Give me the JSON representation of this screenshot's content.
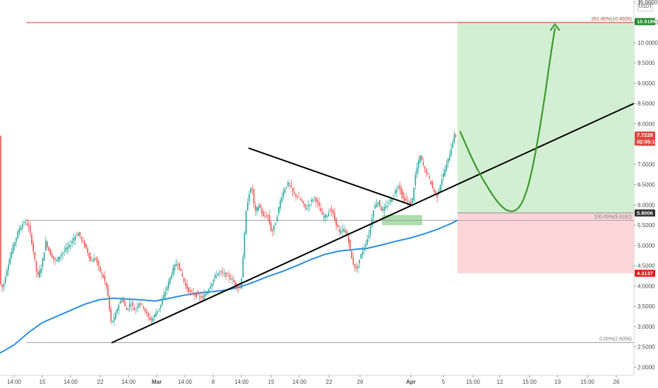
{
  "currency_badge": "USDT",
  "colors": {
    "up": "#26a69a",
    "down": "#ef5350",
    "ma": "#2a8fe0",
    "trend": "#000000",
    "fib_top": "#e53935",
    "fib_mid": "#9e9e9e",
    "target_zone": "#d3efd3",
    "stop_zone": "#fdd5d8",
    "path": "#3a9a2a",
    "demand_box": "#9ed79e"
  },
  "chart_data": {
    "type": "candlestick",
    "y_range": [
      1.8,
      11.05
    ],
    "price_ticks": [
      {
        "label": "11.0000",
        "value": 11.0
      },
      {
        "label": "10.5000",
        "value": 10.5
      },
      {
        "label": "10.0000",
        "value": 10.0
      },
      {
        "label": "9.5000",
        "value": 9.5
      },
      {
        "label": "9.0000",
        "value": 9.0
      },
      {
        "label": "8.5000",
        "value": 8.5
      },
      {
        "label": "8.0000",
        "value": 8.0
      },
      {
        "label": "7.5000",
        "value": 7.5
      },
      {
        "label": "7.0000",
        "value": 7.0
      },
      {
        "label": "6.5000",
        "value": 6.5
      },
      {
        "label": "6.0000",
        "value": 6.0
      },
      {
        "label": "5.5000",
        "value": 5.5
      },
      {
        "label": "5.0000",
        "value": 5.0
      },
      {
        "label": "4.5000",
        "value": 4.5
      },
      {
        "label": "4.0000",
        "value": 4.0
      },
      {
        "label": "3.5000",
        "value": 3.5
      },
      {
        "label": "3.0000",
        "value": 3.0
      },
      {
        "label": "2.5000",
        "value": 2.5
      },
      {
        "label": "2.0000",
        "value": 2.0
      }
    ],
    "time_ticks": [
      {
        "label": "14:00",
        "t": 20
      },
      {
        "label": "15",
        "t": 60
      },
      {
        "label": "14:00",
        "t": 100
      },
      {
        "label": "22",
        "t": 142
      },
      {
        "label": "14:00",
        "t": 182
      },
      {
        "label": "Mar",
        "t": 222,
        "bold": true
      },
      {
        "label": "14:00",
        "t": 262
      },
      {
        "label": "8",
        "t": 302
      },
      {
        "label": "14:00",
        "t": 342
      },
      {
        "label": "15",
        "t": 384
      },
      {
        "label": "14:00",
        "t": 424
      },
      {
        "label": "22",
        "t": 466
      },
      {
        "label": "26",
        "t": 510
      },
      {
        "label": "Apr",
        "t": 582,
        "bold": true
      },
      {
        "label": "5",
        "t": 628
      },
      {
        "label": "15:00",
        "t": 670
      },
      {
        "label": "12",
        "t": 708
      },
      {
        "label": "15:00",
        "t": 750
      },
      {
        "label": "19",
        "t": 790
      },
      {
        "label": "15:00",
        "t": 832
      },
      {
        "label": "26",
        "t": 873
      }
    ],
    "price_tags": [
      {
        "label": "10.5186",
        "value": 10.5186,
        "color": "#1e8a2a"
      },
      {
        "label": "7.7228",
        "value": 7.7228,
        "color": "#e0473e",
        "sub": "02:05:17"
      },
      {
        "label": "5.8006",
        "value": 5.8006,
        "color": "#303030"
      },
      {
        "label": "4.3137",
        "value": 4.3137,
        "color": "#e21b1b"
      }
    ],
    "fib_levels": [
      {
        "label": "261.80%(10.4926)",
        "value": 10.4926,
        "t_start": 37,
        "t_end": 898,
        "style": "red"
      },
      {
        "label": "100.00%(5.6182)",
        "value": 5.6182,
        "t_start": 37,
        "t_end": 898,
        "style": "mid"
      },
      {
        "label": "0.00%(2.6056)",
        "value": 2.6056,
        "t_start": 37,
        "t_end": 898,
        "style": "mid"
      }
    ],
    "position": {
      "t_start": 648,
      "t_end": 898,
      "entry": 5.8006,
      "target": 10.5186,
      "stop": 4.3137
    },
    "demand_zone": {
      "t_start": 541,
      "t_end": 598,
      "low": 5.5,
      "high": 5.75
    },
    "trendlines": [
      {
        "from": [
          158,
          2.6
        ],
        "to": [
          898,
          8.5
        ]
      },
      {
        "from": [
          352,
          7.4
        ],
        "to": [
          582,
          6.0
        ]
      }
    ],
    "projected_path": [
      [
        652,
        7.8
      ],
      [
        672,
        7.0
      ],
      [
        690,
        6.45
      ],
      [
        705,
        6.05
      ],
      [
        720,
        5.82
      ],
      [
        735,
        5.88
      ],
      [
        748,
        6.4
      ],
      [
        760,
        7.4
      ],
      [
        772,
        8.7
      ],
      [
        780,
        9.7
      ],
      [
        786,
        10.35
      ]
    ],
    "arrow_tip": [
      786,
      10.45
    ],
    "moving_average": [
      [
        0,
        2.35
      ],
      [
        20,
        2.55
      ],
      [
        40,
        2.85
      ],
      [
        60,
        3.1
      ],
      [
        80,
        3.25
      ],
      [
        100,
        3.4
      ],
      [
        120,
        3.55
      ],
      [
        140,
        3.66
      ],
      [
        160,
        3.7
      ],
      [
        180,
        3.68
      ],
      [
        200,
        3.66
      ],
      [
        220,
        3.63
      ],
      [
        240,
        3.7
      ],
      [
        260,
        3.77
      ],
      [
        280,
        3.83
      ],
      [
        300,
        3.86
      ],
      [
        320,
        3.9
      ],
      [
        340,
        3.98
      ],
      [
        360,
        4.1
      ],
      [
        380,
        4.24
      ],
      [
        400,
        4.36
      ],
      [
        420,
        4.5
      ],
      [
        440,
        4.65
      ],
      [
        460,
        4.78
      ],
      [
        480,
        4.86
      ],
      [
        500,
        4.9
      ],
      [
        520,
        4.93
      ],
      [
        540,
        5.01
      ],
      [
        560,
        5.1
      ],
      [
        580,
        5.18
      ],
      [
        600,
        5.28
      ],
      [
        620,
        5.4
      ],
      [
        640,
        5.55
      ],
      [
        648,
        5.62
      ]
    ],
    "price_path": [
      [
        0,
        4.1
      ],
      [
        5,
        3.95
      ],
      [
        12,
        4.5
      ],
      [
        20,
        5.0
      ],
      [
        28,
        5.4
      ],
      [
        36,
        5.6
      ],
      [
        42,
        5.45
      ],
      [
        48,
        4.9
      ],
      [
        54,
        4.2
      ],
      [
        60,
        4.5
      ],
      [
        66,
        5.1
      ],
      [
        72,
        4.8
      ],
      [
        80,
        4.6
      ],
      [
        86,
        4.75
      ],
      [
        94,
        4.9
      ],
      [
        100,
        5.0
      ],
      [
        106,
        5.2
      ],
      [
        112,
        5.3
      ],
      [
        118,
        5.1
      ],
      [
        124,
        4.9
      ],
      [
        130,
        4.6
      ],
      [
        136,
        4.7
      ],
      [
        142,
        4.4
      ],
      [
        148,
        4.2
      ],
      [
        153,
        3.9
      ],
      [
        158,
        3.1
      ],
      [
        163,
        3.2
      ],
      [
        168,
        3.5
      ],
      [
        174,
        3.7
      ],
      [
        180,
        3.4
      ],
      [
        186,
        3.6
      ],
      [
        192,
        3.4
      ],
      [
        198,
        3.6
      ],
      [
        204,
        3.5
      ],
      [
        210,
        3.25
      ],
      [
        216,
        3.15
      ],
      [
        222,
        3.35
      ],
      [
        228,
        3.5
      ],
      [
        234,
        3.8
      ],
      [
        240,
        4.1
      ],
      [
        246,
        4.4
      ],
      [
        252,
        4.6
      ],
      [
        258,
        4.3
      ],
      [
        264,
        4.0
      ],
      [
        270,
        3.85
      ],
      [
        276,
        3.8
      ],
      [
        282,
        3.75
      ],
      [
        288,
        3.7
      ],
      [
        294,
        3.85
      ],
      [
        300,
        4.05
      ],
      [
        306,
        4.25
      ],
      [
        312,
        4.35
      ],
      [
        318,
        4.3
      ],
      [
        324,
        4.25
      ],
      [
        330,
        4.15
      ],
      [
        336,
        4.0
      ],
      [
        342,
        3.95
      ],
      [
        346,
        4.9
      ],
      [
        350,
        5.9
      ],
      [
        354,
        6.3
      ],
      [
        358,
        6.45
      ],
      [
        362,
        5.8
      ],
      [
        368,
        6.0
      ],
      [
        374,
        5.7
      ],
      [
        380,
        5.75
      ],
      [
        386,
        5.3
      ],
      [
        392,
        5.6
      ],
      [
        398,
        6.1
      ],
      [
        404,
        6.4
      ],
      [
        410,
        6.55
      ],
      [
        416,
        6.3
      ],
      [
        422,
        6.2
      ],
      [
        428,
        6.1
      ],
      [
        434,
        5.9
      ],
      [
        440,
        6.05
      ],
      [
        446,
        6.2
      ],
      [
        452,
        6.0
      ],
      [
        458,
        5.7
      ],
      [
        464,
        5.75
      ],
      [
        470,
        5.9
      ],
      [
        476,
        5.6
      ],
      [
        482,
        5.3
      ],
      [
        488,
        5.4
      ],
      [
        494,
        5.2
      ],
      [
        500,
        4.6
      ],
      [
        506,
        4.4
      ],
      [
        512,
        4.75
      ],
      [
        518,
        5.0
      ],
      [
        524,
        5.3
      ],
      [
        530,
        5.9
      ],
      [
        536,
        6.1
      ],
      [
        542,
        5.85
      ],
      [
        548,
        5.95
      ],
      [
        554,
        6.1
      ],
      [
        560,
        6.3
      ],
      [
        566,
        6.5
      ],
      [
        572,
        6.15
      ],
      [
        578,
        6.1
      ],
      [
        584,
        6.0
      ],
      [
        590,
        6.8
      ],
      [
        596,
        7.2
      ],
      [
        602,
        6.9
      ],
      [
        608,
        6.7
      ],
      [
        614,
        6.4
      ],
      [
        620,
        6.2
      ],
      [
        626,
        6.6
      ],
      [
        632,
        6.9
      ],
      [
        638,
        7.25
      ],
      [
        644,
        7.7
      ]
    ]
  }
}
